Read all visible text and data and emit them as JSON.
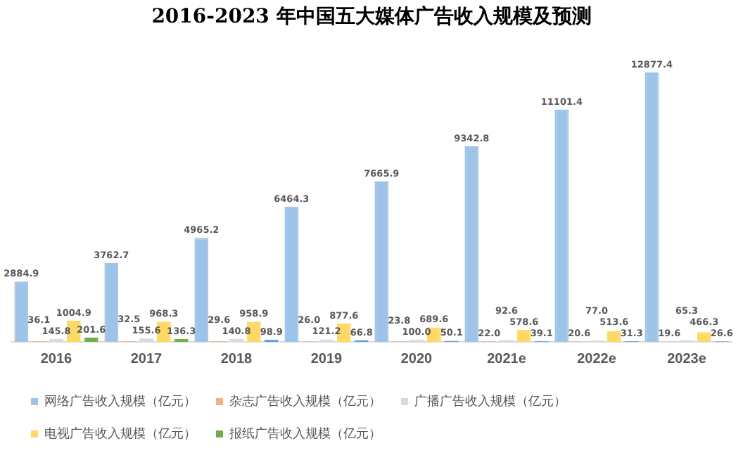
{
  "chart_data": {
    "type": "bar",
    "title": "2016-2023 年中国五大媒体广告收入规模及预测",
    "categories": [
      "2016",
      "2017",
      "2018",
      "2019",
      "2020",
      "2021e",
      "2022e",
      "2023e"
    ],
    "series": [
      {
        "name": "网络广告收入规模（亿元）",
        "color": "#9dc3e6",
        "values": [
          2884.9,
          3762.7,
          4965.2,
          6464.3,
          7665.9,
          9342.8,
          11101.4,
          12877.4
        ]
      },
      {
        "name": "杂志广告收入规模（亿元）",
        "color": "#f4b183",
        "values": [
          36.1,
          32.5,
          29.6,
          26.0,
          23.8,
          22.0,
          20.6,
          19.6
        ],
        "value_labels": [
          "36.1",
          "32.5",
          "29.6",
          "26.0",
          "23.8",
          "22.0",
          "20.6",
          "19.6"
        ]
      },
      {
        "name": "广播广告收入规模（亿元）",
        "color": "#d9d9d9",
        "values": [
          145.8,
          155.6,
          140.8,
          121.2,
          100.0,
          92.6,
          77.0,
          65.3
        ],
        "value_labels": [
          "145.8",
          "155.6",
          "140.8",
          "121.2",
          "100.0",
          "92.6",
          "77.0",
          "65.3"
        ]
      },
      {
        "name": "电视广告收入规模（亿元）",
        "color": "#ffd966",
        "values": [
          1004.9,
          968.3,
          958.9,
          877.6,
          689.6,
          578.6,
          513.6,
          466.3
        ]
      },
      {
        "name": "报纸广告收入规模（亿元）",
        "color": "#70ad47",
        "colors": [
          "#70ad47",
          "#70ad47",
          "#5b9bd5",
          "#5b9bd5",
          "#5b9bd5",
          "#5b9bd5",
          "#5b9bd5",
          "#5b9bd5"
        ],
        "values": [
          201.6,
          136.3,
          98.9,
          66.8,
          50.1,
          39.1,
          31.3,
          26.6
        ]
      }
    ],
    "data_labels": true,
    "grid": false,
    "legend": "bottom"
  }
}
